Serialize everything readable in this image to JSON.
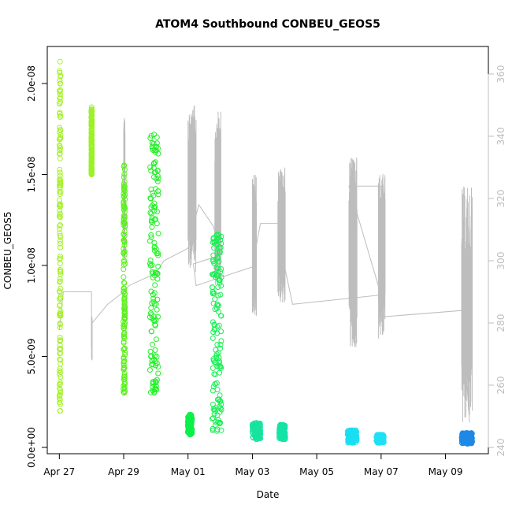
{
  "chart_data": {
    "type": "scatter",
    "title": "ATOM4 Southbound CONBEU_GEOS5",
    "xlabel": "Date",
    "ylabel": "CONBEU_GEOS5",
    "xlim": [
      "2018-04-26T15:00",
      "2018-05-10T08:00"
    ],
    "ylim": [
      0,
      2.1e-08
    ],
    "y2lim": [
      238,
      364
    ],
    "x_ticks": [
      {
        "date": "2018-04-27",
        "label": "Apr 27"
      },
      {
        "date": "2018-04-29",
        "label": "Apr 29"
      },
      {
        "date": "2018-05-01",
        "label": "May 01"
      },
      {
        "date": "2018-05-03",
        "label": "May 03"
      },
      {
        "date": "2018-05-05",
        "label": "May 05"
      },
      {
        "date": "2018-05-07",
        "label": "May 07"
      },
      {
        "date": "2018-05-09",
        "label": "May 09"
      }
    ],
    "y_ticks": [
      {
        "value": 0,
        "label": "0.0e+00"
      },
      {
        "value": 5e-09,
        "label": "5.0e-09"
      },
      {
        "value": 1e-08,
        "label": "1.0e-08"
      },
      {
        "value": 1.5e-08,
        "label": "1.5e-08"
      },
      {
        "value": 2e-08,
        "label": "2.0e-08"
      }
    ],
    "y2_ticks": [
      {
        "value": 240,
        "label": "240"
      },
      {
        "value": 260,
        "label": "260"
      },
      {
        "value": 280,
        "label": "280"
      },
      {
        "value": 300,
        "label": "300"
      },
      {
        "value": 320,
        "label": "320"
      },
      {
        "value": 340,
        "label": "340"
      },
      {
        "value": 360,
        "label": "360"
      }
    ],
    "grid": false,
    "legend": "none",
    "colors": {
      "secondary_line": "#bdbdbd",
      "axis": "#000000",
      "right_axis": "#bdbdbd"
    },
    "scatter_segments": [
      {
        "x_start": "2018-04-27T00:05",
        "x_end": "2018-04-27T01:00",
        "y_min": 2e-09,
        "y_max": 2.12e-08,
        "color": "#a6f02c"
      },
      {
        "x_start": "2018-04-27T23:50",
        "x_end": "2018-04-28T00:20",
        "y_min": 1.5e-08,
        "y_max": 1.87e-08,
        "color": "#9cf02a"
      },
      {
        "x_start": "2018-04-28T23:45",
        "x_end": "2018-04-29T01:00",
        "y_min": 3e-09,
        "y_max": 1.55e-08,
        "color": "#5cf01f"
      },
      {
        "x_start": "2018-04-29T19:30",
        "x_end": "2018-04-30T02:00",
        "y_min": 3e-09,
        "y_max": 1.72e-08,
        "color": "#22f027"
      },
      {
        "x_start": "2018-04-30T23:50",
        "x_end": "2018-05-01T03:00",
        "y_min": 7e-10,
        "y_max": 1.8e-09,
        "color": "#0cf04a"
      },
      {
        "x_start": "2018-05-01T18:00",
        "x_end": "2018-05-02T01:00",
        "y_min": 9e-10,
        "y_max": 1.17e-08,
        "color": "#17f052"
      },
      {
        "x_start": "2018-05-02T23:50",
        "x_end": "2018-05-03T06:00",
        "y_min": 4.5e-10,
        "y_max": 1.35e-09,
        "color": "#18e3a0"
      },
      {
        "x_start": "2018-05-03T20:00",
        "x_end": "2018-05-04T00:30",
        "y_min": 4.5e-10,
        "y_max": 1.25e-09,
        "color": "#16e3a6"
      },
      {
        "x_start": "2018-05-05T23:00",
        "x_end": "2018-05-06T06:00",
        "y_min": 2.5e-10,
        "y_max": 9.5e-10,
        "color": "#1bdff2"
      },
      {
        "x_start": "2018-05-06T20:30",
        "x_end": "2018-05-07T02:00",
        "y_min": 2.5e-10,
        "y_max": 7e-10,
        "color": "#20e0f4"
      },
      {
        "x_start": "2018-05-09T12:00",
        "x_end": "2018-05-09T20:00",
        "y_min": 2e-10,
        "y_max": 8e-10,
        "color": "#1e88e5"
      }
    ],
    "secondary_series": {
      "axis": "right",
      "points": [
        [
          "2018-04-27T00:00",
          278
        ],
        [
          "2018-04-27T03:00",
          290
        ],
        [
          "2018-04-28T00:00",
          290
        ],
        [
          "2018-04-28T00:00",
          272
        ],
        [
          "2018-04-28T00:30",
          280
        ],
        [
          "2018-04-28T12:00",
          286
        ],
        [
          "2018-04-29T00:00",
          290
        ],
        [
          "2018-04-29T04:00",
          292
        ],
        [
          "2018-04-30T00:00",
          296
        ],
        [
          "2018-04-30T06:00",
          300
        ],
        [
          "2018-05-01T00:00",
          304
        ],
        [
          "2018-05-01T08:00",
          318
        ],
        [
          "2018-05-01T19:00",
          311
        ],
        [
          "2018-05-02T00:00",
          302
        ],
        [
          "2018-05-02T02:00",
          302
        ],
        [
          "2018-05-01T04:00",
          299
        ],
        [
          "2018-05-01T06:00",
          292
        ],
        [
          "2018-05-03T00:00",
          298
        ],
        [
          "2018-05-03T06:00",
          312
        ],
        [
          "2018-05-04T00:00",
          312
        ],
        [
          "2018-05-04T00:00",
          298
        ],
        [
          "2018-05-04T06:00",
          286
        ],
        [
          "2018-05-07T00:00",
          289
        ],
        [
          "2018-05-06T00:00",
          324
        ],
        [
          "2018-05-07T00:00",
          324
        ],
        [
          "2018-05-07T02:00",
          282
        ],
        [
          "2018-05-09T12:00",
          284
        ],
        [
          "2018-05-09T18:00",
          248
        ]
      ],
      "spikes": [
        {
          "x_start": "2018-05-01T00:00",
          "x_end": "2018-05-01T06:00",
          "y_min": 296,
          "y_max": 350
        },
        {
          "x_start": "2018-05-01T20:00",
          "x_end": "2018-05-02T00:30",
          "y_min": 292,
          "y_max": 348
        },
        {
          "x_start": "2018-05-03T00:00",
          "x_end": "2018-05-03T03:00",
          "y_min": 282,
          "y_max": 328
        },
        {
          "x_start": "2018-05-03T19:00",
          "x_end": "2018-05-04T00:30",
          "y_min": 286,
          "y_max": 330
        },
        {
          "x_start": "2018-05-06T00:00",
          "x_end": "2018-05-06T06:00",
          "y_min": 272,
          "y_max": 334
        },
        {
          "x_start": "2018-05-06T22:00",
          "x_end": "2018-05-07T03:00",
          "y_min": 274,
          "y_max": 328
        },
        {
          "x_start": "2018-05-09T12:00",
          "x_end": "2018-05-09T20:00",
          "y_min": 248,
          "y_max": 324
        },
        {
          "x_start": "2018-04-29T00:00",
          "x_end": "2018-04-29T01:00",
          "y_min": 300,
          "y_max": 346
        },
        {
          "x_start": "2018-04-28T00:00",
          "x_end": "2018-04-28T00:30",
          "y_min": 268,
          "y_max": 282
        }
      ]
    }
  }
}
